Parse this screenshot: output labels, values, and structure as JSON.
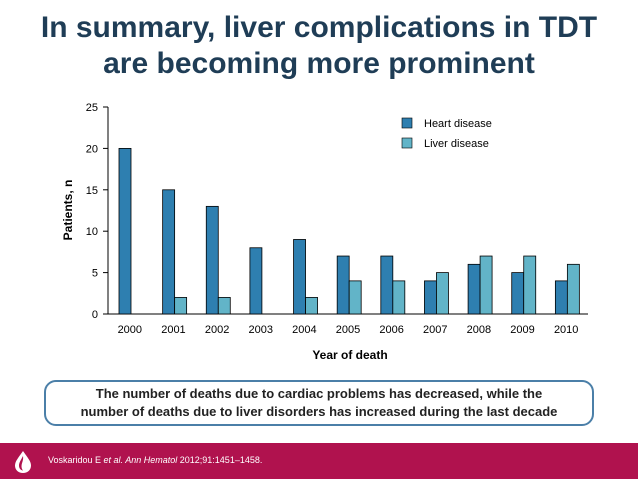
{
  "title": {
    "line1": "In summary, liver complications in TDT",
    "line2": "are becoming more prominent"
  },
  "chart_data": {
    "type": "bar",
    "categories": [
      "2000",
      "2001",
      "2002",
      "2003",
      "2004",
      "2005",
      "2006",
      "2007",
      "2008",
      "2009",
      "2010"
    ],
    "series": [
      {
        "name": "Heart disease",
        "color": "#2e7fb0",
        "values": [
          20,
          15,
          13,
          8,
          9,
          7,
          7,
          4,
          6,
          5,
          4
        ]
      },
      {
        "name": "Liver disease",
        "color": "#62b4c8",
        "values": [
          0,
          2,
          2,
          0,
          2,
          4,
          4,
          5,
          7,
          7,
          6
        ]
      }
    ],
    "xlabel": "Year of death",
    "ylabel": "Patients, n",
    "ylim": [
      0,
      25
    ],
    "yticks": [
      "0",
      "5",
      "10",
      "15",
      "20",
      "25"
    ],
    "legend_position": "top-right"
  },
  "callout": {
    "line1": "The number of deaths due to cardiac problems has decreased, while the",
    "line2": "number of deaths due to liver disorders has increased during the last decade"
  },
  "footer": {
    "authors": "Voskaridou E ",
    "etal": "et al. Ann Hematol",
    "citation": " 2012;91:1451–1458.",
    "logo_icon": "drop-logo-icon",
    "color": "#b0124e"
  }
}
